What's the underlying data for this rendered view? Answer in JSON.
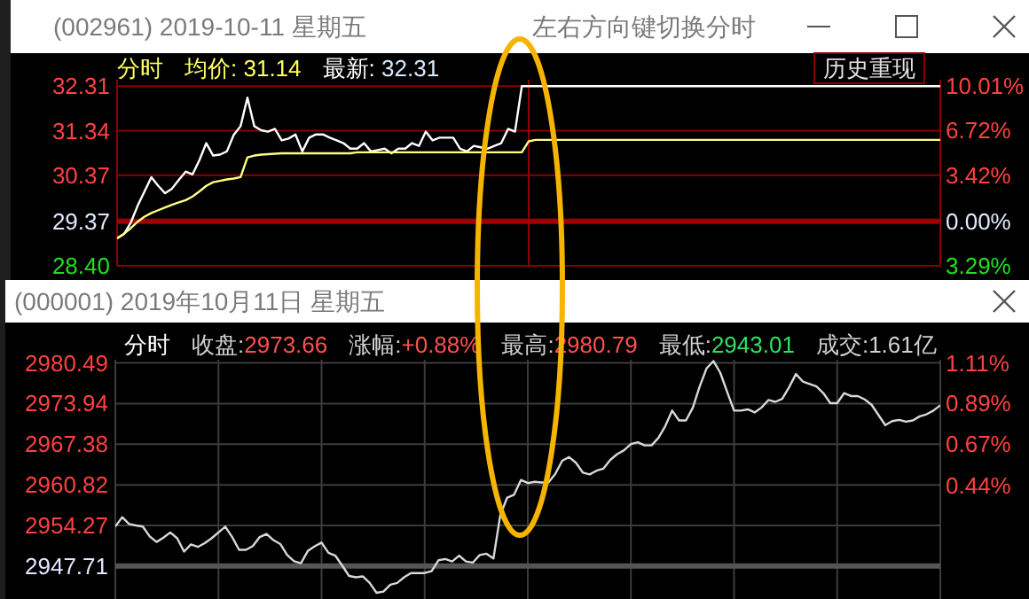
{
  "chart_data": [
    {
      "type": "line",
      "title": "(002961) 2019-10-11 星期五",
      "annotations": [
        "左右方向键切换分时",
        "分时",
        "均价: 31.14",
        "最新: 32.31",
        "历史重现"
      ],
      "categories": [
        null,
        null,
        null,
        null,
        null,
        null,
        null,
        null,
        null,
        null,
        null,
        null,
        null,
        null,
        null,
        null,
        null,
        null,
        null,
        null,
        null,
        null,
        null,
        null,
        null,
        null,
        null,
        null,
        null,
        null,
        null,
        null,
        null,
        null,
        null,
        null,
        null,
        null,
        null,
        null,
        null,
        null,
        null,
        null,
        null,
        null,
        null,
        null,
        null,
        null,
        null,
        null,
        null,
        null,
        null,
        null,
        null,
        null,
        null,
        null,
        null,
        null,
        null,
        null,
        null,
        null,
        null,
        null,
        null,
        null,
        null,
        null,
        null,
        null,
        null,
        null,
        null,
        null,
        null,
        null,
        null,
        null,
        null,
        null,
        null,
        null,
        null,
        null,
        null,
        null,
        null,
        null,
        null,
        null,
        null,
        null,
        null,
        null,
        null,
        null,
        null,
        null,
        null,
        null,
        null,
        null,
        null,
        null,
        null,
        null,
        null,
        null,
        null,
        null,
        null,
        null,
        null,
        null,
        null,
        null,
        null
      ],
      "series": [
        {
          "color": "#ffffff",
          "values": [
            29.0,
            29.09,
            29.34,
            29.71,
            30.02,
            30.33,
            30.14,
            29.98,
            30.08,
            30.27,
            30.45,
            30.39,
            30.7,
            31.07,
            30.8,
            30.82,
            30.89,
            31.25,
            31.44,
            32.06,
            31.44,
            31.35,
            31.32,
            31.38,
            31.13,
            31.17,
            31.26,
            30.89,
            31.19,
            31.26,
            31.26,
            31.19,
            31.13,
            31.07,
            30.95,
            30.95,
            31.07,
            30.89,
            30.92,
            30.95,
            30.85,
            30.95,
            30.95,
            31.07,
            31.01,
            31.32,
            31.13,
            31.19,
            31.19,
            31.19,
            30.95,
            30.89,
            31.01,
            30.98,
            30.95,
            31.01,
            31.07,
            31.38,
            31.32,
            32.31,
            32.31,
            32.31,
            32.31,
            32.31,
            32.31,
            32.31,
            32.31,
            32.31,
            32.31,
            32.31,
            32.31,
            32.31,
            32.31,
            32.31,
            32.31,
            32.31,
            32.31,
            32.31,
            32.31,
            32.31,
            32.31,
            32.31,
            32.31,
            32.31,
            32.31,
            32.31,
            32.31,
            32.31,
            32.31,
            32.31,
            32.31,
            32.31,
            32.31,
            32.31,
            32.31,
            32.31,
            32.31,
            32.31,
            32.31,
            32.31,
            32.31,
            32.31,
            32.31,
            32.31,
            32.31,
            32.31,
            32.31,
            32.31,
            32.31,
            32.31,
            32.31,
            32.31,
            32.31,
            32.31,
            32.31,
            32.31,
            32.31,
            32.31,
            32.31,
            32.31,
            32.31
          ]
        },
        {
          "color": "#ffff80",
          "values": [
            29.0,
            29.1,
            29.22,
            29.36,
            29.47,
            29.55,
            29.61,
            29.67,
            29.73,
            29.78,
            29.83,
            29.91,
            30.02,
            30.14,
            30.22,
            30.25,
            30.28,
            30.3,
            30.33,
            30.76,
            30.8,
            30.82,
            30.83,
            30.84,
            30.85,
            30.85,
            30.85,
            30.85,
            30.85,
            30.85,
            30.85,
            30.85,
            30.85,
            30.85,
            30.85,
            30.87,
            30.87,
            30.87,
            30.87,
            30.87,
            30.87,
            30.87,
            30.87,
            30.87,
            30.87,
            30.87,
            30.87,
            30.87,
            30.87,
            30.87,
            30.87,
            30.87,
            30.87,
            30.87,
            30.87,
            30.87,
            30.87,
            30.87,
            30.87,
            30.87,
            31.11,
            31.14,
            31.14,
            31.14,
            31.14,
            31.14,
            31.14,
            31.14,
            31.14,
            31.14,
            31.14,
            31.14,
            31.14,
            31.14,
            31.14,
            31.14,
            31.14,
            31.14,
            31.14,
            31.14,
            31.14,
            31.14,
            31.14,
            31.14,
            31.14,
            31.14,
            31.14,
            31.14,
            31.14,
            31.14,
            31.14,
            31.14,
            31.14,
            31.14,
            31.14,
            31.14,
            31.14,
            31.14,
            31.14,
            31.14,
            31.14,
            31.14,
            31.14,
            31.14,
            31.14,
            31.14,
            31.14,
            31.14,
            31.14,
            31.14,
            31.14,
            31.14,
            31.14,
            31.14,
            31.14,
            31.14,
            31.14,
            31.14,
            31.14,
            31.14,
            31.14
          ]
        }
      ],
      "ylim": [
        28.4,
        32.45
      ],
      "yticks": [
        {
          "value": 32.31,
          "label": "32.31"
        },
        {
          "value": 31.34,
          "label": "31.34"
        },
        {
          "value": 30.37,
          "label": "30.37"
        },
        {
          "value": 29.37,
          "label": "29.37"
        },
        {
          "value": 28.4,
          "label": "28.40"
        }
      ],
      "y2lim": [
        -3.3,
        10.49
      ],
      "y2ticks": [
        {
          "value": 10.01,
          "label": "10.01%"
        },
        {
          "value": 6.72,
          "label": "6.72%"
        },
        {
          "value": 3.42,
          "label": "3.42%"
        },
        {
          "value": 0,
          "label": "0.00%"
        },
        {
          "value": -3.29,
          "label": "3.29%"
        }
      ],
      "ref_lines": [
        {
          "axis": "y",
          "value": 29.37,
          "color": "#a00000"
        }
      ],
      "grid": true,
      "tick_labels": "y"
    },
    {
      "type": "line",
      "title": "(000001) 2019年10月11日 星期五",
      "annotations": [
        "分时",
        "收盘:2973.66",
        "涨幅:+0.88%",
        "最高:2980.79",
        "最低:2943.01",
        "成交:1.61亿"
      ],
      "categories": [
        null,
        null,
        null,
        null,
        null,
        null,
        null,
        null,
        null,
        null,
        null,
        null,
        null,
        null,
        null,
        null,
        null,
        null,
        null,
        null,
        null,
        null,
        null,
        null,
        null,
        null,
        null,
        null,
        null,
        null,
        null,
        null,
        null,
        null,
        null,
        null,
        null,
        null,
        null,
        null,
        null,
        null,
        null,
        null,
        null,
        null,
        null,
        null,
        null,
        null,
        null,
        null,
        null,
        null,
        null,
        null,
        null,
        null,
        null,
        null,
        null,
        null,
        null,
        null,
        null,
        null,
        null,
        null,
        null,
        null,
        null,
        null,
        null,
        null,
        null,
        null,
        null,
        null,
        null,
        null,
        null,
        null,
        null,
        null,
        null,
        null,
        null,
        null,
        null,
        null,
        null,
        null,
        null,
        null,
        null,
        null,
        null,
        null,
        null,
        null,
        null,
        null,
        null,
        null,
        null,
        null,
        null,
        null,
        null,
        null,
        null,
        null,
        null,
        null,
        null,
        null,
        null,
        null,
        null,
        null,
        null
      ],
      "series": [
        {
          "color": "#d8d8d8",
          "values": [
            2954.08,
            2955.6,
            2954.5,
            2954.26,
            2954.08,
            2952.5,
            2951.6,
            2952.3,
            2953.14,
            2952.2,
            2950.05,
            2951.2,
            2950.8,
            2951.4,
            2952.2,
            2953.14,
            2954.08,
            2952.39,
            2950.33,
            2950.33,
            2950.95,
            2952.4,
            2952.9,
            2951.9,
            2951.27,
            2949.5,
            2948.5,
            2948.18,
            2950.14,
            2950.9,
            2951.5,
            2949.86,
            2949.4,
            2947.8,
            2946.12,
            2945.9,
            2946.05,
            2945.0,
            2943.4,
            2943.6,
            2944.71,
            2945.0,
            2945.9,
            2946.59,
            2946.59,
            2946.59,
            2946.9,
            2948.65,
            2948.85,
            2948.45,
            2949.4,
            2948.46,
            2948.27,
            2949.5,
            2949.7,
            2948.93,
            2955.95,
            2958.76,
            2959.23,
            2961.6,
            2961.1,
            2961.3,
            2961.2,
            2961.2,
            2962.6,
            2964.7,
            2965.3,
            2964.38,
            2962.8,
            2962.5,
            2963.1,
            2963.44,
            2964.84,
            2965.78,
            2966.4,
            2967.4,
            2967.7,
            2967.19,
            2967.19,
            2968.4,
            2970.3,
            2972.8,
            2971.2,
            2971.2,
            2973.27,
            2976.7,
            2979.6,
            2980.79,
            2978.89,
            2975.8,
            2972.8,
            2972.8,
            2973.0,
            2972.5,
            2973.3,
            2974.5,
            2974.21,
            2974.7,
            2976.55,
            2978.7,
            2977.49,
            2977.1,
            2976.7,
            2975.6,
            2974.0,
            2974.0,
            2975.61,
            2975.14,
            2975.14,
            2974.6,
            2973.74,
            2972.1,
            2970.46,
            2971.1,
            2971.3,
            2971.0,
            2971.2,
            2971.87,
            2972.2,
            2972.8,
            2973.66
          ]
        }
      ],
      "ylim": [
        2942.4,
        2981.0
      ],
      "yticks": [
        {
          "value": 2980.49,
          "label": "2980.49"
        },
        {
          "value": 2973.94,
          "label": "2973.94"
        },
        {
          "value": 2967.38,
          "label": "2967.38"
        },
        {
          "value": 2960.82,
          "label": "2960.82"
        },
        {
          "value": 2954.27,
          "label": "2954.27"
        },
        {
          "value": 2947.71,
          "label": "2947.71"
        }
      ],
      "y2lim": [
        -0.18,
        1.13
      ],
      "y2ticks": [
        {
          "value": 1.11,
          "label": "1.11%"
        },
        {
          "value": 0.89,
          "label": "0.89%"
        },
        {
          "value": 0.67,
          "label": "0.67%"
        },
        {
          "value": 0.44,
          "label": "0.44%"
        }
      ],
      "ref_lines": [
        {
          "axis": "y",
          "value": 2947.71,
          "color": "#555555"
        }
      ],
      "grid": true,
      "tick_labels": "y"
    }
  ]
}
